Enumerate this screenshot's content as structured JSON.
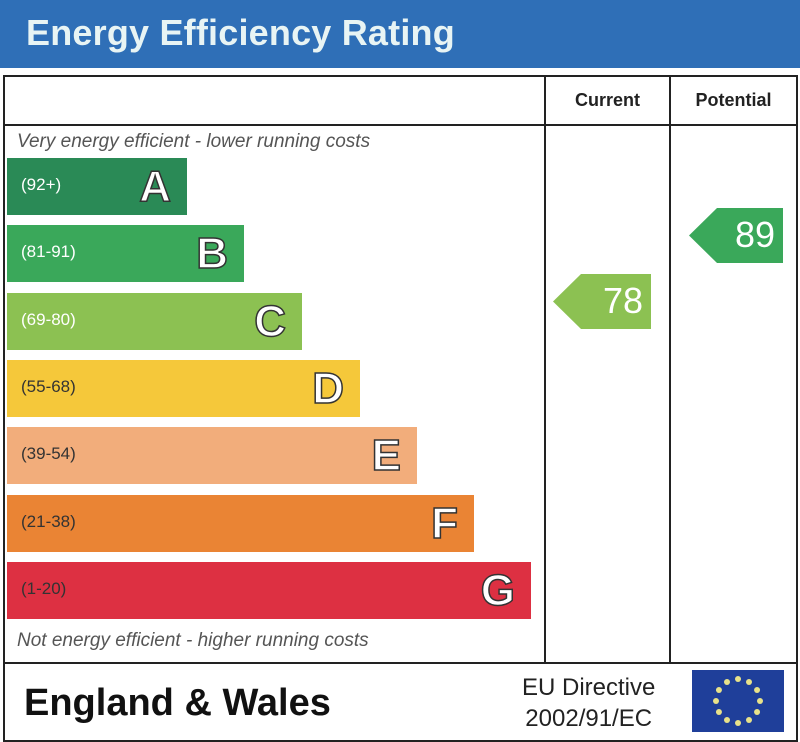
{
  "title": "Energy Efficiency Rating",
  "columns": {
    "current": "Current",
    "potential": "Potential"
  },
  "top_note": "Very energy efficient - lower running costs",
  "bottom_note": "Not energy efficient - higher running costs",
  "footer": {
    "region": "England & Wales",
    "directive_line1": "EU Directive",
    "directive_line2": "2002/91/EC",
    "flag_icon": "eu-flag-icon"
  },
  "chart_data": {
    "type": "bar",
    "title": "Energy Efficiency Rating",
    "bands": [
      {
        "letter": "A",
        "range": "(92+)",
        "color": "#2a8a56"
      },
      {
        "letter": "B",
        "range": "(81-91)",
        "color": "#3aa85a"
      },
      {
        "letter": "C",
        "range": "(69-80)",
        "color": "#8cc152"
      },
      {
        "letter": "D",
        "range": "(55-68)",
        "color": "#f5c83a"
      },
      {
        "letter": "E",
        "range": "(39-54)",
        "color": "#f2ad7b"
      },
      {
        "letter": "F",
        "range": "(21-38)",
        "color": "#ea8434"
      },
      {
        "letter": "G",
        "range": "(1-20)",
        "color": "#dd3042"
      }
    ],
    "current": {
      "value": "78",
      "band": "C",
      "color": "#8cc152"
    },
    "potential": {
      "value": "89",
      "band": "B",
      "color": "#3aa85a"
    }
  }
}
